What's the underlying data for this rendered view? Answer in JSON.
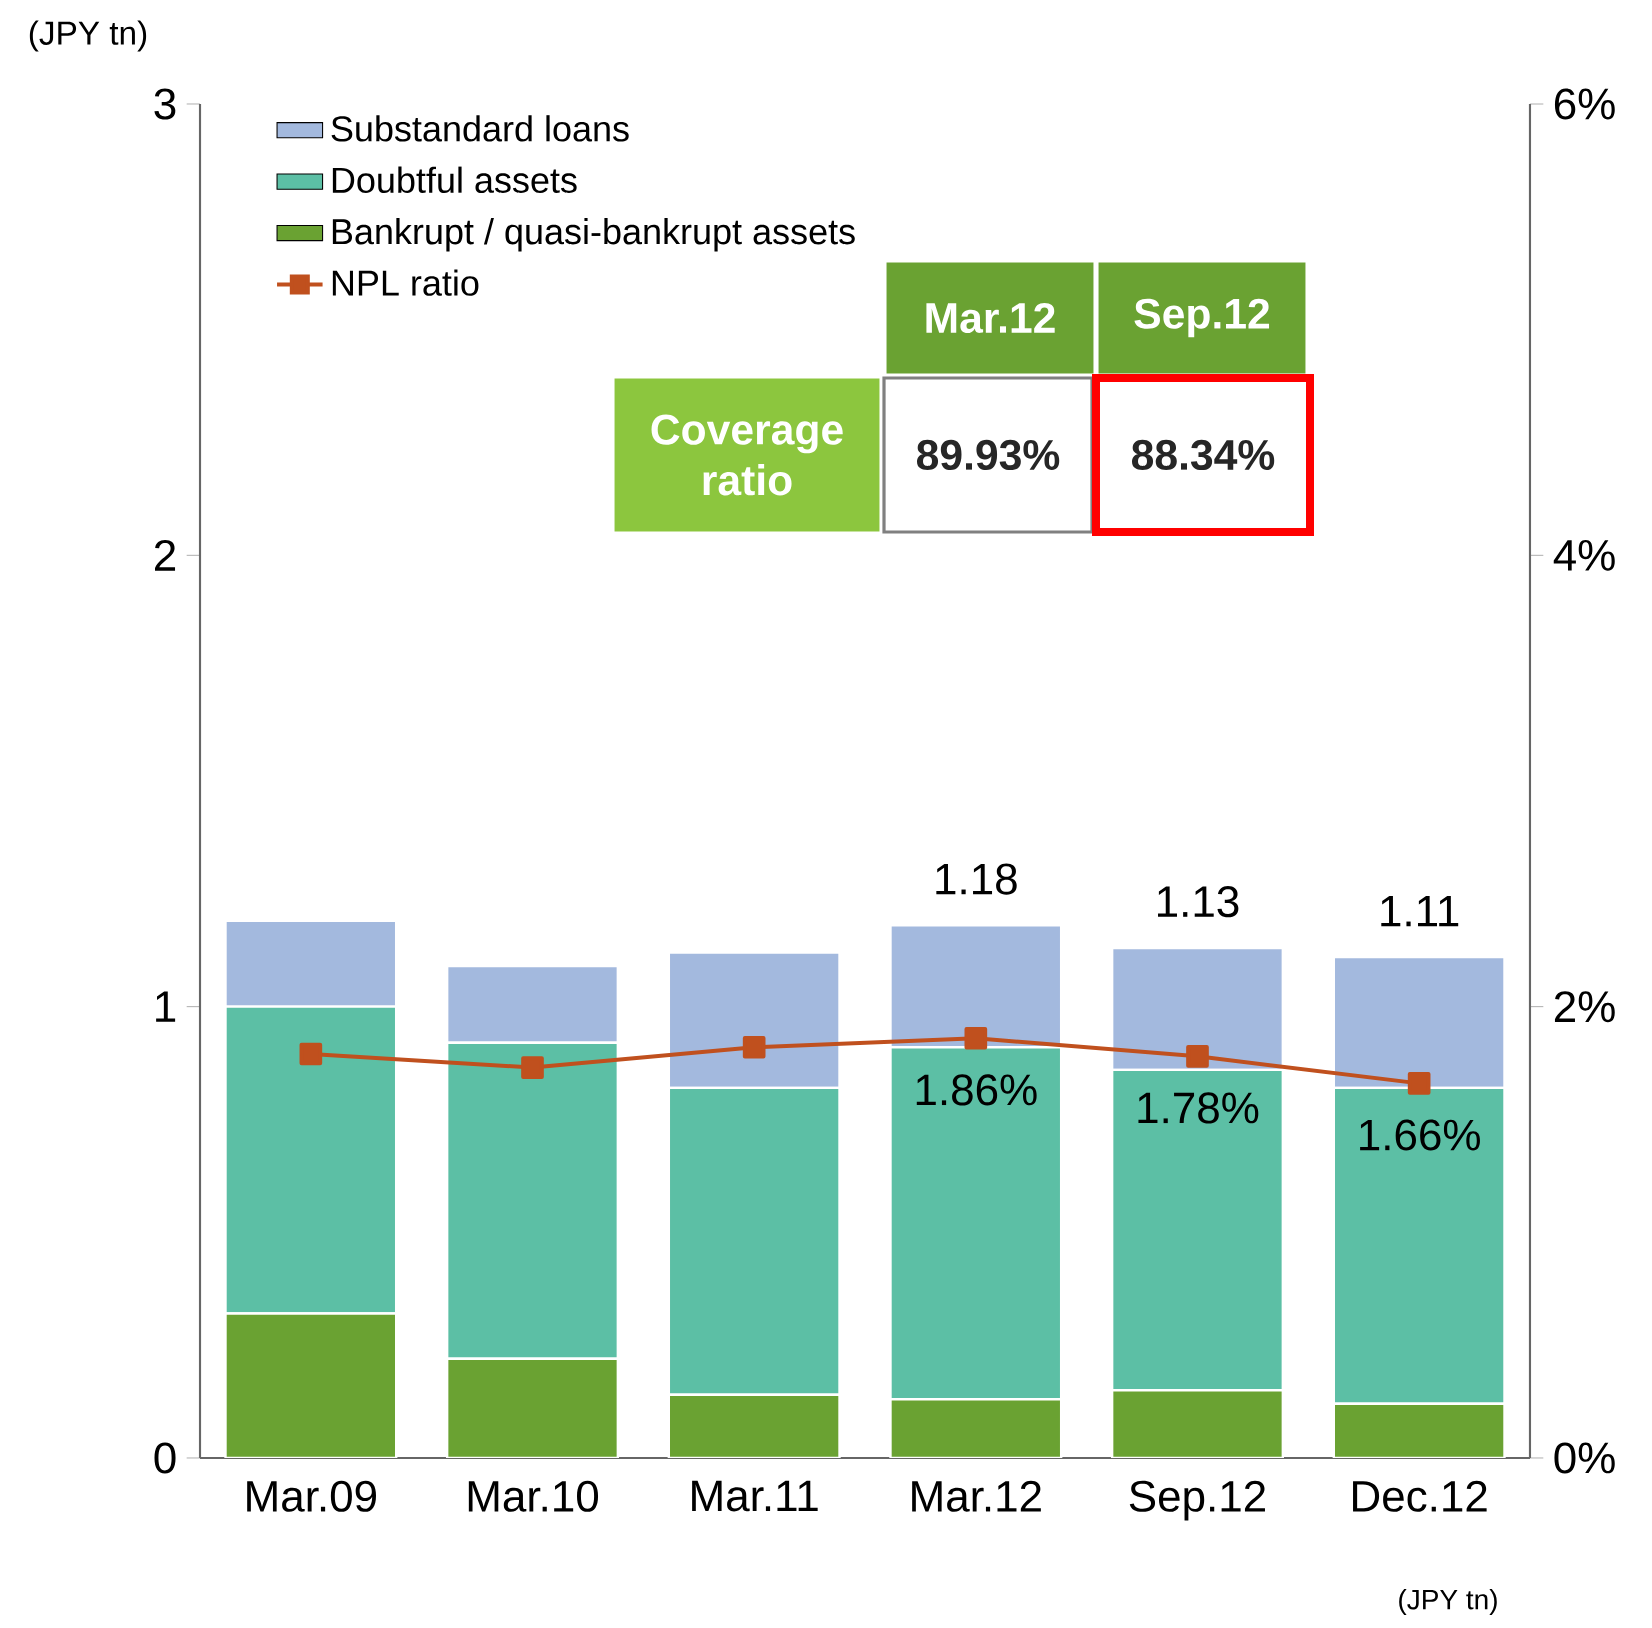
{
  "chart_data": {
    "type": "bar",
    "stacked": true,
    "categories": [
      "Mar.09",
      "Mar.10",
      "Mar.11",
      "Mar.12",
      "Sep.12",
      "Dec.12"
    ],
    "series": [
      {
        "name": "Bankrupt / quasi-bankrupt assets",
        "color": "#6aa232",
        "values": [
          0.32,
          0.22,
          0.14,
          0.13,
          0.15,
          0.12
        ]
      },
      {
        "name": "Doubtful assets",
        "color": "#5cbfa5",
        "values": [
          0.68,
          0.7,
          0.68,
          0.78,
          0.71,
          0.7
        ]
      },
      {
        "name": "Substandard loans",
        "color": "#a3b9de",
        "values": [
          0.19,
          0.17,
          0.3,
          0.27,
          0.27,
          0.29
        ]
      },
      {
        "name": "NPL ratio",
        "type": "line",
        "axis": "y2",
        "color": "#c0501e",
        "values": [
          1.79,
          1.73,
          1.82,
          1.86,
          1.78,
          1.66
        ],
        "value_labels": [
          null,
          null,
          null,
          "1.86%",
          "1.78%",
          "1.66%"
        ]
      }
    ],
    "totals": [
      null,
      null,
      null,
      "1.18",
      "1.13",
      "1.11"
    ],
    "ylabel": "(JPY tn)",
    "ylim": [
      0,
      3
    ],
    "yticks": [
      0,
      1,
      2,
      3
    ],
    "y2lim": [
      0,
      6
    ],
    "y2ticks": [
      {
        "value": 0,
        "label": "0%"
      },
      {
        "value": 2,
        "label": "2%"
      },
      {
        "value": 4,
        "label": "4%"
      },
      {
        "value": 6,
        "label": "6%"
      }
    ],
    "marker": "square",
    "legend": "top left",
    "annotations": [
      "Mar.12",
      "Sep.12",
      "Coverage ratio",
      "89.93%",
      "88.34%",
      "(JPY tn)"
    ]
  }
}
